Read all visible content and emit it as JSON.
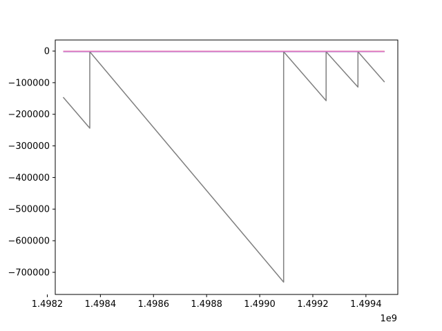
{
  "chart_data": {
    "type": "line",
    "title": "",
    "xlabel": "",
    "ylabel": "",
    "x_offset_label": "1e9",
    "xlim": [
      1.49823,
      1.49952
    ],
    "ylim": [
      -770000,
      35000
    ],
    "x_ticks": [
      1.4982,
      1.4984,
      1.4986,
      1.4988,
      1.499,
      1.4992,
      1.4994
    ],
    "x_tick_labels": [
      "1.4982",
      "1.4984",
      "1.4986",
      "1.4988",
      "1.4990",
      "1.4992",
      "1.4994"
    ],
    "y_ticks": [
      0,
      -100000,
      -200000,
      -300000,
      -400000,
      -500000,
      -600000,
      -700000
    ],
    "y_tick_labels": [
      "0",
      "−100000",
      "−200000",
      "−300000",
      "−400000",
      "−500000",
      "−600000",
      "−700000"
    ],
    "grid": false,
    "legend": "none",
    "series": [
      {
        "color": "#7f7f7f",
        "x": [
          1.49826,
          1.49836,
          1.49836,
          1.49909,
          1.49909,
          1.49925,
          1.49925,
          1.49937,
          1.49937,
          1.49947
        ],
        "y": [
          -146000,
          -244000,
          -2000,
          -731000,
          -2000,
          -157000,
          -2000,
          -114000,
          -2000,
          -98000
        ]
      },
      {
        "color": "#d62728",
        "x": [
          1.49826,
          1.49947
        ],
        "y": [
          -1000,
          -1000
        ]
      },
      {
        "color": "#8c564b",
        "x": [
          1.49826,
          1.49947
        ],
        "y": [
          -1500,
          -1500
        ]
      },
      {
        "color": "#9467bd",
        "x": [
          1.49826,
          1.49947
        ],
        "y": [
          -1800,
          -1800
        ]
      },
      {
        "color": "#e377c2",
        "x": [
          1.49826,
          1.49935,
          1.49947
        ],
        "y": [
          -800,
          -800,
          -1200
        ]
      }
    ]
  }
}
